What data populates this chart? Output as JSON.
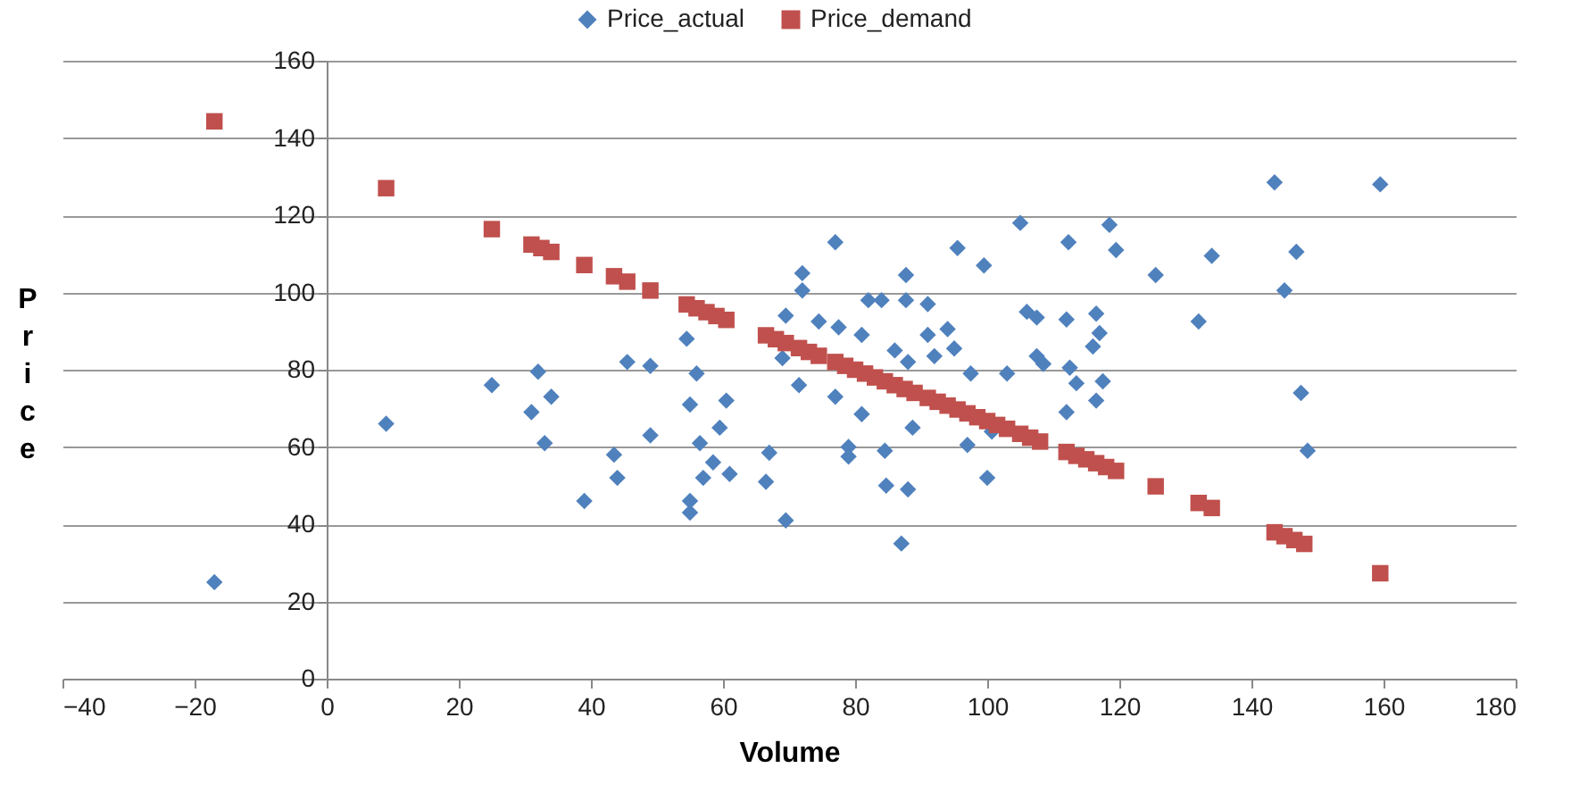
{
  "chart_data": {
    "type": "scatter",
    "xlabel": "Volume",
    "ylabel": "Price",
    "x": [
      -17,
      9,
      25,
      31,
      32,
      33,
      34,
      39,
      43.5,
      44,
      45.5,
      49,
      49,
      54.5,
      55,
      55,
      55,
      56,
      56.5,
      57,
      58.5,
      59.5,
      60.5,
      61,
      66.5,
      67,
      69,
      69.5,
      69.5,
      71.5,
      72,
      72,
      74.5,
      77,
      77,
      77.5,
      79,
      79,
      81,
      81,
      82,
      84,
      84.5,
      84.7,
      86,
      87,
      87.7,
      87.7,
      88,
      88,
      88.7,
      91,
      91,
      92,
      94,
      95,
      95.5,
      97,
      97.5,
      99.5,
      100,
      100.7,
      103,
      105,
      106,
      107.5,
      107.5,
      108.5,
      112,
      112,
      112.3,
      112.5,
      113.5,
      116,
      116.5,
      116.5,
      117,
      117.5,
      118.5,
      119.5,
      125.5,
      132,
      134,
      143.5,
      145,
      146.8,
      147.5,
      148.5,
      159.5
    ],
    "series": [
      {
        "name": "Price_actual",
        "color": "#4f81bd",
        "marker": "diamond",
        "values": [
          25,
          66,
          76,
          69,
          79.5,
          61,
          73,
          46,
          58,
          52,
          82,
          81,
          63,
          88,
          71,
          46,
          43,
          79,
          61,
          52,
          56,
          65,
          72,
          53,
          51,
          58.5,
          83,
          94,
          41,
          76,
          105,
          100.5,
          92.5,
          113,
          73,
          91,
          60,
          57.5,
          68.5,
          89,
          98,
          98,
          59,
          50,
          85,
          35,
          104.5,
          98,
          82,
          49,
          65,
          97,
          89,
          83.5,
          90.5,
          85.5,
          111.5,
          60.5,
          79,
          107,
          52,
          64,
          79,
          118,
          95,
          93.5,
          83.5,
          81.5,
          69,
          93,
          113,
          80.5,
          76.5,
          86,
          72,
          94.5,
          89.5,
          77,
          117.5,
          111,
          104.5,
          92.5,
          109.5,
          128.5,
          100.5,
          110.5,
          74,
          59,
          128
        ]
      },
      {
        "name": "Price_demand",
        "color": "#c0504d",
        "marker": "square",
        "x": [
          -17,
          9,
          25,
          31,
          32.5,
          34,
          39,
          43.5,
          45.5,
          49,
          54.5,
          56,
          57.5,
          59,
          60.5,
          66.5,
          68,
          69.5,
          71.5,
          73,
          74.5,
          77,
          78.5,
          80,
          81.5,
          83,
          84.5,
          86,
          87.5,
          89,
          91,
          92.5,
          94,
          95.5,
          97,
          98.5,
          100,
          101.5,
          103,
          105,
          106.5,
          108,
          112,
          113.5,
          115,
          116.5,
          118,
          119.5,
          125.5,
          132,
          134,
          143.5,
          145,
          146.5,
          148,
          159.5
        ],
        "values": [
          144.3,
          127,
          116.4,
          112.4,
          111.5,
          110.5,
          107.1,
          104.2,
          102.8,
          100.5,
          96.9,
          95.9,
          94.9,
          93.9,
          92.9,
          88.9,
          87.9,
          86.9,
          85.6,
          84.6,
          83.6,
          82,
          81,
          80,
          79,
          78,
          77,
          76,
          75,
          74,
          72.7,
          71.7,
          70.7,
          69.7,
          68.7,
          67.7,
          66.7,
          65.7,
          64.7,
          63.4,
          62.4,
          61.4,
          58.7,
          57.7,
          56.8,
          55.8,
          54.8,
          53.8,
          49.8,
          45.5,
          44.2,
          37.9,
          36.9,
          35.9,
          34.9,
          27.3
        ]
      }
    ],
    "xlim": [
      -40,
      180
    ],
    "xticks": [
      -40,
      -20,
      0,
      20,
      40,
      60,
      80,
      100,
      120,
      140,
      160,
      180
    ],
    "ylim": [
      0,
      160
    ],
    "yticks": [
      0,
      20,
      40,
      60,
      80,
      100,
      120,
      140,
      160
    ],
    "grid": "y",
    "legend": "top"
  }
}
